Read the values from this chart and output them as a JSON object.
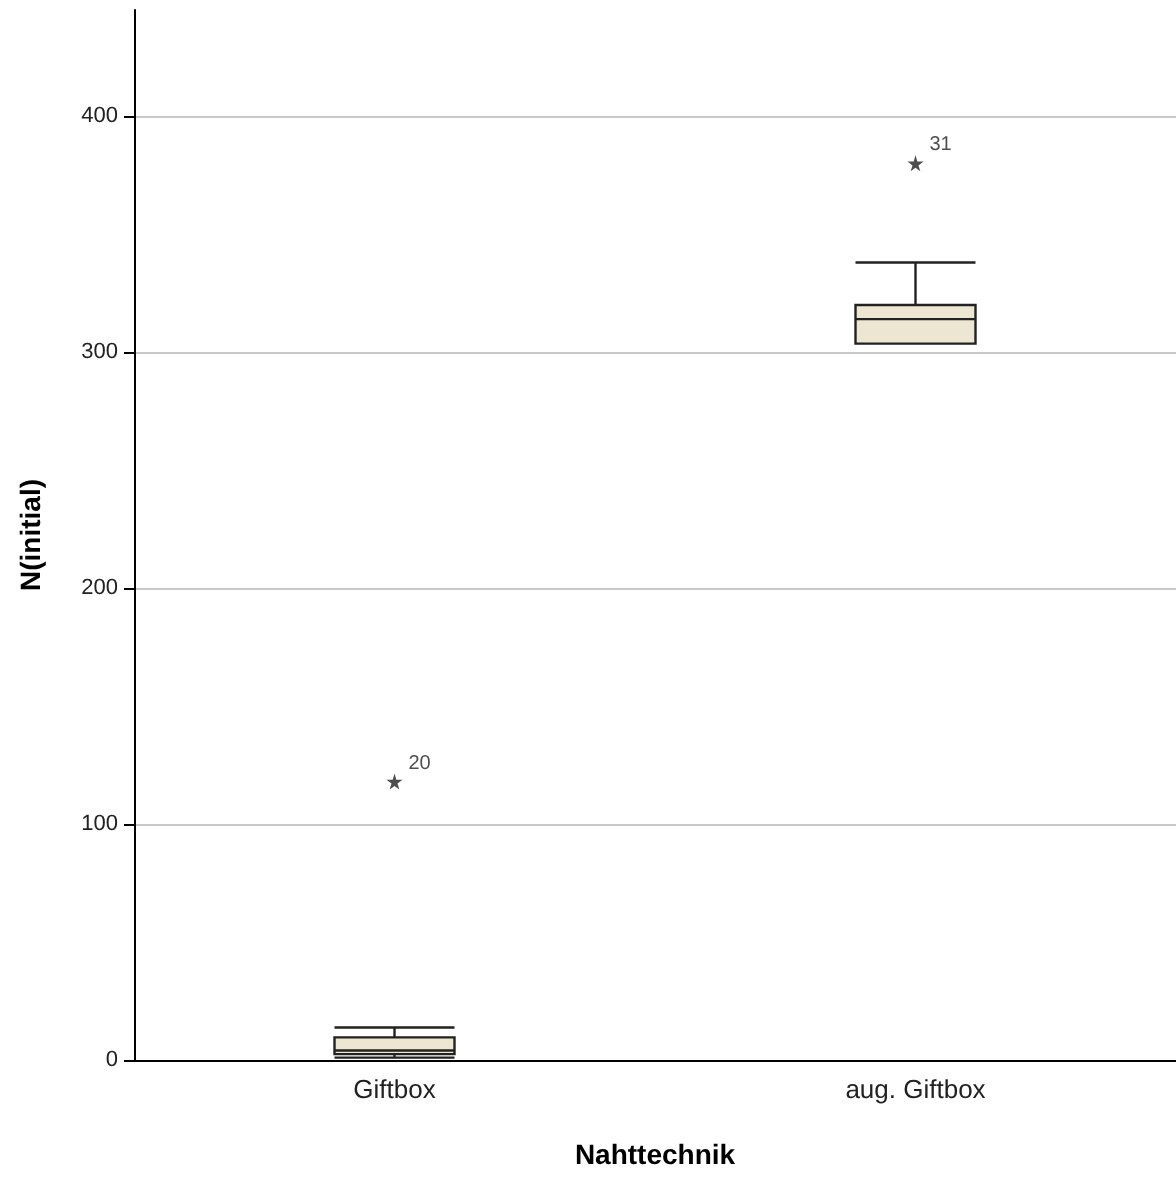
{
  "chart_data": {
    "type": "box",
    "xlabel": "Nahttechnik",
    "ylabel": "N(initial)",
    "categories": [
      "Giftbox",
      "aug. Giftbox"
    ],
    "boxes": [
      {
        "low": 1,
        "q1": 2.5,
        "median": 4,
        "q3": 9.6,
        "high": 13.8,
        "outliers": [
          118
        ]
      },
      {
        "low": 303.6,
        "q1": 303.6,
        "median": 314,
        "q3": 320,
        "high": 338,
        "outliers": [
          380
        ]
      }
    ],
    "color": "#ede6d2",
    "marker": "star",
    "annotations": [
      "20",
      "31"
    ],
    "ylim": [
      0,
      445
    ],
    "yticks": [
      0,
      100,
      200,
      300,
      400
    ],
    "grid": "y"
  }
}
